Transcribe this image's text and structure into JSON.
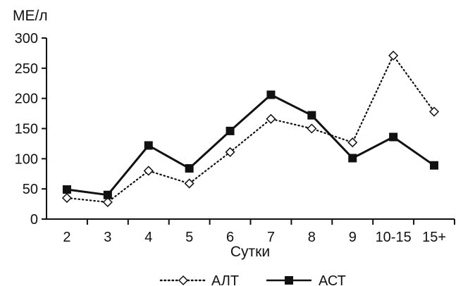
{
  "chart_data": {
    "type": "line",
    "title": "",
    "xlabel": "Сутки",
    "ylabel": "МЕ/л",
    "ylim": [
      0,
      300
    ],
    "yticks": [
      0,
      50,
      100,
      150,
      200,
      250,
      300
    ],
    "categories": [
      "2",
      "3",
      "4",
      "5",
      "6",
      "7",
      "8",
      "9",
      "10-15",
      "15+"
    ],
    "series": [
      {
        "name": "АЛТ",
        "values": [
          35,
          28,
          80,
          59,
          111,
          166,
          150,
          127,
          271,
          178
        ],
        "color": "#111111",
        "line_style": "dotted",
        "marker": "diamond-open"
      },
      {
        "name": "АСТ",
        "values": [
          49,
          40,
          122,
          84,
          146,
          206,
          172,
          101,
          136,
          89
        ],
        "color": "#111111",
        "line_style": "solid",
        "marker": "square-filled"
      }
    ],
    "grid": false,
    "legend_position": "bottom"
  }
}
